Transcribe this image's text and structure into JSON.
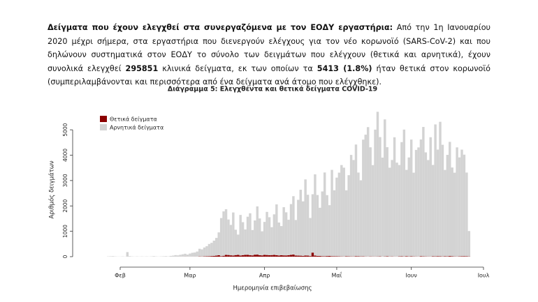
{
  "intro": [
    {
      "text": "Δείγματα που έχουν ελεγχθεί στα συνεργαζόμενα με τον ΕΟΔΥ εργαστήρια:",
      "bold": true
    },
    {
      "text": " Από την 1η Ιανουαρίου 2020 μέχρι σήμερα, στα εργαστήρια που διενεργούν ελέγχους για τον νέο κορωνοϊό (SARS-CoV-2) και που δηλώνουν συστηματικά στον ΕΟΔΥ το σύνολο των δειγμάτων που ελέγχουν (θετικά και αρνητικά), έχουν συνολικά ελεγχθεί ",
      "bold": false
    },
    {
      "text": "295851",
      "bold": true
    },
    {
      "text": " κλινικά δείγματα, εκ των οποίων τα ",
      "bold": false
    },
    {
      "text": "5413 (1.8%)",
      "bold": true
    },
    {
      "text": " ήταν θετικά στον κορωνοϊό (συμπεριλαμβάνονται και περισσότερα από ένα δείγματα ανά άτομο που ελέγχθηκε).",
      "bold": false
    }
  ],
  "chart_data": {
    "type": "stacked_bar",
    "title": "Διάγραμμα 5: Ελεγχθέντα και θετικά δείγματα COVID-19",
    "xlabel": "Ημερομηνία επιβεβαίωσης",
    "ylabel": "Αριθμός δειγμάτων",
    "legend": "topleft",
    "ylim": [
      0,
      5800
    ],
    "yticks": [
      0,
      1000,
      2000,
      3000,
      4000,
      5000
    ],
    "categories": [
      null,
      null,
      null,
      null,
      null,
      "Φεβ",
      null,
      null,
      null,
      null,
      null,
      null,
      null,
      null,
      null,
      null,
      null,
      null,
      null,
      null,
      null,
      null,
      null,
      null,
      null,
      null,
      null,
      null,
      null,
      null,
      null,
      null,
      null,
      null,
      "Μαρ",
      null,
      null,
      null,
      null,
      null,
      null,
      null,
      null,
      null,
      null,
      null,
      null,
      null,
      null,
      null,
      null,
      null,
      null,
      null,
      null,
      null,
      null,
      null,
      null,
      null,
      null,
      null,
      null,
      null,
      null,
      "Απρ",
      null,
      null,
      null,
      null,
      null,
      null,
      null,
      null,
      null,
      null,
      null,
      null,
      null,
      null,
      null,
      null,
      null,
      null,
      null,
      null,
      null,
      null,
      null,
      null,
      null,
      null,
      null,
      null,
      null,
      "Μαΐ",
      null,
      null,
      null,
      null,
      null,
      null,
      null,
      null,
      null,
      null,
      null,
      null,
      null,
      null,
      null,
      null,
      null,
      null,
      null,
      null,
      null,
      null,
      null,
      null,
      null,
      null,
      null,
      null,
      null,
      null,
      "Ιουν",
      null,
      null,
      null,
      null,
      null,
      null,
      null,
      null,
      null,
      null,
      null,
      null,
      null,
      null,
      null,
      null,
      null,
      null,
      null,
      null,
      null,
      null,
      null,
      null,
      null,
      null,
      null,
      null,
      null,
      "Ιουλ"
    ],
    "series": [
      {
        "name": "Θετικά δείγματα",
        "color": "#8b0000",
        "values": [
          0,
          0,
          0,
          0,
          0,
          0,
          0,
          0,
          1,
          0,
          0,
          0,
          0,
          0,
          0,
          0,
          0,
          0,
          0,
          0,
          0,
          0,
          0,
          0,
          0,
          0,
          0,
          0,
          0,
          0,
          3,
          2,
          4,
          3,
          2,
          3,
          4,
          3,
          10,
          8,
          12,
          15,
          20,
          25,
          31,
          40,
          57,
          22,
          35,
          70,
          65,
          52,
          42,
          62,
          70,
          45,
          60,
          72,
          75,
          60,
          50,
          78,
          81,
          55,
          50,
          70,
          65,
          55,
          62,
          68,
          60,
          45,
          56,
          50,
          48,
          55,
          72,
          85,
          45,
          40,
          38,
          30,
          45,
          40,
          25,
          160,
          45,
          30,
          28,
          20,
          18,
          25,
          30,
          20,
          18,
          15,
          12,
          10,
          8,
          15,
          12,
          10,
          9,
          20,
          15,
          11,
          12,
          8,
          6,
          10,
          8,
          7,
          9,
          12,
          5,
          10,
          14,
          8,
          10,
          6,
          5,
          12,
          15,
          9,
          20,
          10,
          15,
          10,
          8,
          6,
          20,
          12,
          10,
          8,
          7,
          15,
          12,
          20,
          15,
          10,
          18,
          12,
          25,
          14,
          10,
          8,
          12,
          18,
          20,
          15,
          10,
          null,
          null,
          null,
          null,
          null,
          null
        ]
      },
      {
        "name": "Αρνητικά δείγματα",
        "color": "#d3d3d3",
        "values": [
          10,
          15,
          20,
          10,
          5,
          5,
          10,
          5,
          180,
          20,
          10,
          5,
          10,
          5,
          10,
          5,
          10,
          5,
          10,
          20,
          10,
          5,
          10,
          15,
          20,
          10,
          30,
          40,
          60,
          50,
          70,
          90,
          110,
          80,
          120,
          150,
          160,
          200,
          300,
          280,
          350,
          400,
          480,
          520,
          600,
          700,
          900,
          1500,
          1750,
          1800,
          1400,
          1200,
          1700,
          1000,
          800,
          1600,
          1300,
          1000,
          1500,
          1650,
          1000,
          1350,
          1900,
          1450,
          950,
          1300,
          1700,
          1500,
          1100,
          1600,
          2000,
          1300,
          1150,
          1900,
          1700,
          1400,
          2000,
          2300,
          1400,
          2200,
          2600,
          2150,
          3000,
          2400,
          1500,
          2300,
          3200,
          2400,
          1900,
          2550,
          3300,
          2400,
          2000,
          3400,
          2600,
          3100,
          3300,
          3600,
          3500,
          2600,
          3200,
          4000,
          3800,
          4400,
          3300,
          3000,
          4600,
          4800,
          5100,
          4300,
          3600,
          5000,
          5700,
          4700,
          3900,
          5400,
          4300,
          3500,
          3800,
          4700,
          3700,
          3600,
          4500,
          5000,
          3400,
          3900,
          4600,
          3300,
          4200,
          4300,
          4600,
          5100,
          4100,
          3800,
          4700,
          3600,
          5200,
          4200,
          5300,
          4400,
          3400,
          4000,
          4500,
          3500,
          3300,
          4300,
          3900,
          4200,
          4000,
          3300,
          1000,
          null,
          null,
          null,
          null,
          null,
          null
        ]
      }
    ]
  }
}
